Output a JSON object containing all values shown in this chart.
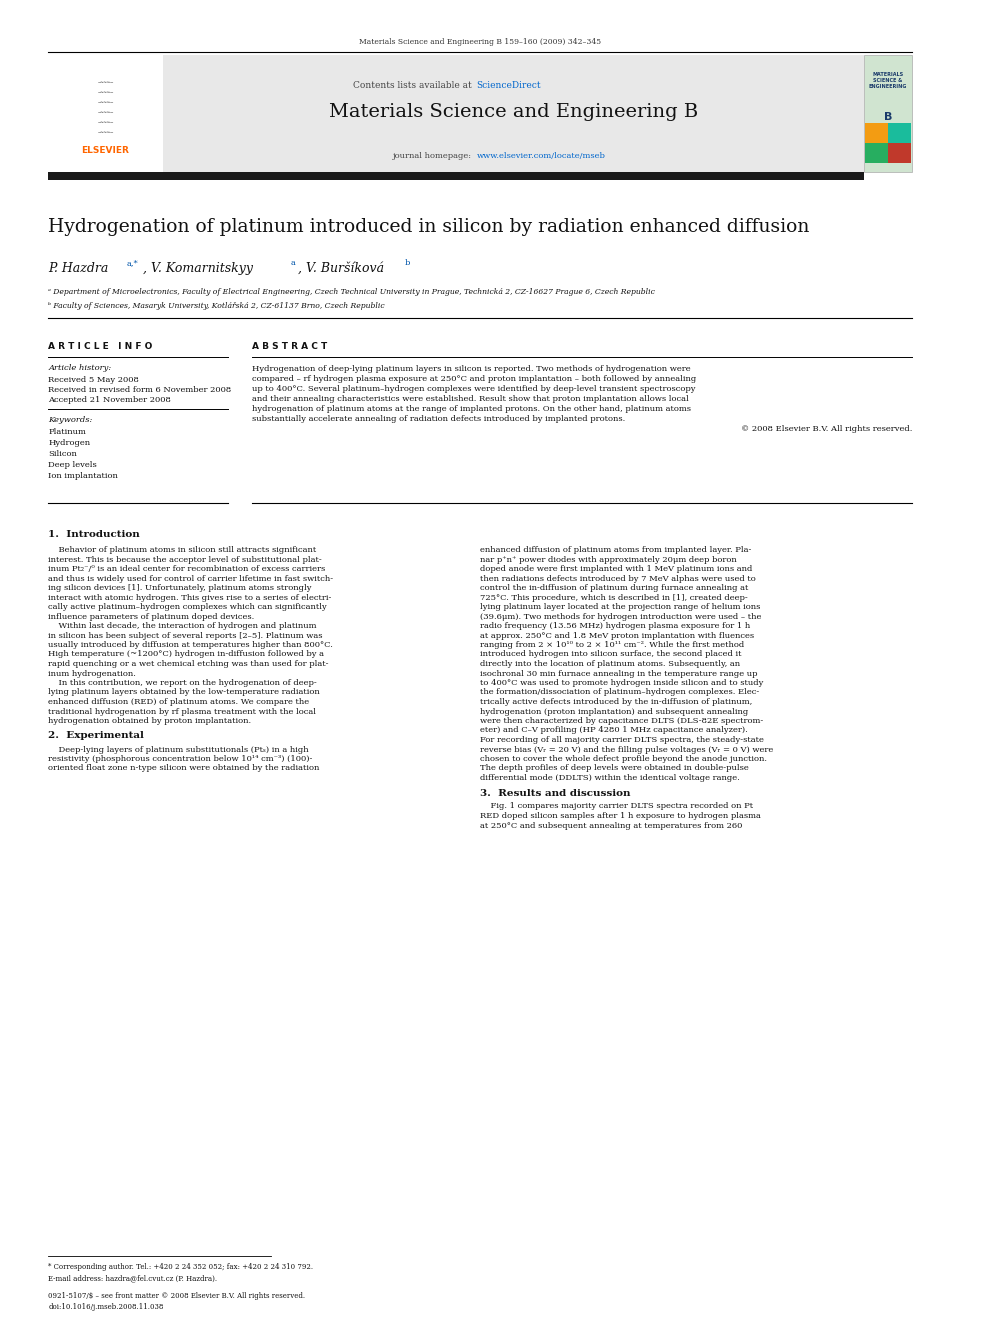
{
  "page_width": 9.92,
  "page_height": 13.23,
  "background_color": "#ffffff",
  "top_journal_ref": "Materials Science and Engineering B 159–160 (2009) 342–345",
  "header_bg": "#e8e8e8",
  "header_contents_text": "Contents lists available at ",
  "header_sd_text": "ScienceDirect",
  "header_sd_color": "#0066cc",
  "journal_title": "Materials Science and Engineering B",
  "journal_homepage_text": "journal homepage: ",
  "journal_url": "www.elsevier.com/locate/mseb",
  "journal_url_color": "#0066cc",
  "black_bar_color": "#1a1a1a",
  "article_title": "Hydrogenation of platinum introduced in silicon by radiation enhanced diffusion",
  "affil_a": "ᵃ Department of Microelectronics, Faculty of Electrical Engineering, Czech Technical University in Prague, Technická 2, CZ-16627 Prague 6, Czech Republic",
  "affil_b": "ᵇ Faculty of Sciences, Masaryk University, Kotlářská 2, CZ-61137 Brno, Czech Republic",
  "article_info_header": "A R T I C L E   I N F O",
  "abstract_header": "A B S T R A C T",
  "article_history_label": "Article history:",
  "received": "Received 5 May 2008",
  "received_revised": "Received in revised form 6 November 2008",
  "accepted": "Accepted 21 November 2008",
  "keywords_label": "Keywords:",
  "keywords": [
    "Platinum",
    "Hydrogen",
    "Silicon",
    "Deep levels",
    "Ion implantation"
  ],
  "footnote_star": "* Corresponding author. Tel.: +420 2 24 352 052; fax: +420 2 24 310 792.",
  "footnote_email": "E-mail address: hazdra@fel.cvut.cz (P. Hazdra).",
  "footer_issn": "0921-5107/$ – see front matter © 2008 Elsevier B.V. All rights reserved.",
  "footer_doi": "doi:10.1016/j.mseb.2008.11.038"
}
